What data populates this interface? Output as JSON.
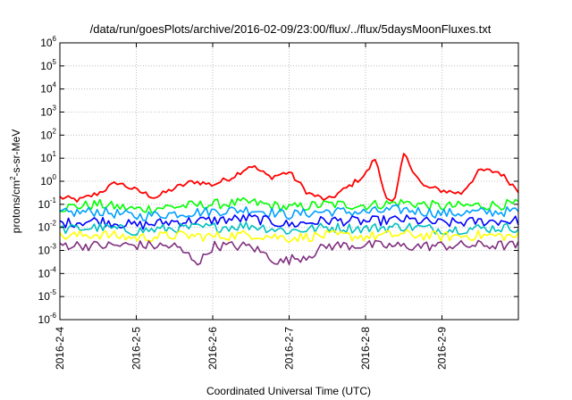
{
  "chart_data": {
    "type": "line",
    "title": "/data/run/goesPlots/archive/2016-02-09/23:00/flux/../flux/5daysMoonFluxes.txt",
    "xlabel": "Coordinated Universal Time (UTC)",
    "ylabel": "protons/cm²-s-sr-MeV",
    "ylabel_parts": {
      "base": "protons/cm",
      "sup": "2",
      "rest": "-s-sr-MeV"
    },
    "yscale": "log",
    "ylim": [
      1e-06,
      1000000.0
    ],
    "y_tick_exponents": [
      -6,
      -5,
      -4,
      -3,
      -2,
      -1,
      0,
      1,
      2,
      3,
      4,
      5,
      6
    ],
    "y_tick_base": "10",
    "x_range_days": [
      "2016-2-4",
      "2016-2-10"
    ],
    "x_ticks": [
      "2016-2-4",
      "2016-2-5",
      "2016-2-6",
      "2016-2-7",
      "2016-2-8",
      "2016-2-9"
    ],
    "grid": true,
    "series": [
      {
        "color": "#ff0000",
        "x": [
          "2016-2-4 00:00",
          "2016-2-4 06:00",
          "2016-2-4 12:00",
          "2016-2-4 18:00",
          "2016-2-5 00:00",
          "2016-2-5 06:00",
          "2016-2-5 12:00",
          "2016-2-5 18:00",
          "2016-2-6 00:00",
          "2016-2-6 06:00",
          "2016-2-6 12:00",
          "2016-2-6 18:00",
          "2016-2-7 00:00",
          "2016-2-7 06:00",
          "2016-2-7 12:00",
          "2016-2-7 18:00",
          "2016-2-8 00:00",
          "2016-2-8 03:00",
          "2016-2-8 06:00",
          "2016-2-8 09:00",
          "2016-2-8 12:00",
          "2016-2-8 18:00",
          "2016-2-9 00:00",
          "2016-2-9 06:00",
          "2016-2-9 12:00",
          "2016-2-9 18:00",
          "2016-2-10 00:00"
        ],
        "values": [
          0.2,
          0.15,
          0.3,
          0.9,
          0.4,
          0.2,
          0.5,
          1.0,
          0.7,
          1.5,
          5.0,
          1.5,
          2.5,
          0.3,
          0.15,
          0.5,
          2.0,
          10.0,
          0.3,
          0.1,
          15.0,
          0.6,
          0.4,
          0.3,
          3.0,
          2.5,
          0.4
        ]
      },
      {
        "color": "#00ff00",
        "x": [
          "2016-2-4 00:00",
          "2016-2-4 12:00",
          "2016-2-5 00:00",
          "2016-2-5 12:00",
          "2016-2-6 00:00",
          "2016-2-6 12:00",
          "2016-2-7 00:00",
          "2016-2-7 12:00",
          "2016-2-8 00:00",
          "2016-2-8 12:00",
          "2016-2-9 00:00",
          "2016-2-9 12:00",
          "2016-2-10 00:00"
        ],
        "values": [
          0.07,
          0.1,
          0.06,
          0.08,
          0.1,
          0.12,
          0.07,
          0.1,
          0.09,
          0.12,
          0.08,
          0.09,
          0.1
        ]
      },
      {
        "color": "#00a0ff",
        "x": [
          "2016-2-4 00:00",
          "2016-2-4 12:00",
          "2016-2-5 00:00",
          "2016-2-5 12:00",
          "2016-2-6 00:00",
          "2016-2-6 12:00",
          "2016-2-7 00:00",
          "2016-2-7 12:00",
          "2016-2-8 00:00",
          "2016-2-8 12:00",
          "2016-2-9 00:00",
          "2016-2-9 12:00",
          "2016-2-10 00:00"
        ],
        "values": [
          0.04,
          0.05,
          0.03,
          0.04,
          0.05,
          0.06,
          0.035,
          0.05,
          0.045,
          0.06,
          0.04,
          0.045,
          0.05
        ]
      },
      {
        "color": "#0000ff",
        "x": [
          "2016-2-4 00:00",
          "2016-2-4 12:00",
          "2016-2-5 00:00",
          "2016-2-5 12:00",
          "2016-2-6 00:00",
          "2016-2-6 12:00",
          "2016-2-7 00:00",
          "2016-2-7 12:00",
          "2016-2-8 00:00",
          "2016-2-8 12:00",
          "2016-2-9 00:00",
          "2016-2-9 12:00",
          "2016-2-10 00:00"
        ],
        "values": [
          0.015,
          0.02,
          0.012,
          0.018,
          0.02,
          0.025,
          0.013,
          0.02,
          0.018,
          0.022,
          0.015,
          0.018,
          0.02
        ]
      },
      {
        "color": "#00c0c0",
        "x": [
          "2016-2-4 00:00",
          "2016-2-4 12:00",
          "2016-2-5 00:00",
          "2016-2-5 12:00",
          "2016-2-6 00:00",
          "2016-2-6 12:00",
          "2016-2-7 00:00",
          "2016-2-7 12:00",
          "2016-2-8 00:00",
          "2016-2-8 12:00",
          "2016-2-9 00:00",
          "2016-2-9 12:00",
          "2016-2-10 00:00"
        ],
        "values": [
          0.008,
          0.01,
          0.007,
          0.009,
          0.01,
          0.012,
          0.007,
          0.01,
          0.009,
          0.011,
          0.008,
          0.009,
          0.01
        ]
      },
      {
        "color": "#ffff00",
        "x": [
          "2016-2-4 00:00",
          "2016-2-4 12:00",
          "2016-2-5 00:00",
          "2016-2-5 12:00",
          "2016-2-6 00:00",
          "2016-2-6 12:00",
          "2016-2-7 00:00",
          "2016-2-7 12:00",
          "2016-2-8 00:00",
          "2016-2-8 12:00",
          "2016-2-9 00:00",
          "2016-2-9 12:00",
          "2016-2-10 00:00"
        ],
        "values": [
          0.004,
          0.005,
          0.0035,
          0.0045,
          0.004,
          0.005,
          0.0035,
          0.0045,
          0.004,
          0.005,
          0.004,
          0.0045,
          0.004
        ]
      },
      {
        "color": "#80307f",
        "x": [
          "2016-2-4 00:00",
          "2016-2-4 12:00",
          "2016-2-5 00:00",
          "2016-2-5 12:00",
          "2016-2-5 20:00",
          "2016-2-6 00:00",
          "2016-2-6 12:00",
          "2016-2-6 21:00",
          "2016-2-7 00:00",
          "2016-2-7 06:00",
          "2016-2-7 12:00",
          "2016-2-8 00:00",
          "2016-2-8 12:00",
          "2016-2-9 00:00",
          "2016-2-9 12:00",
          "2016-2-10 00:00"
        ],
        "values": [
          0.0018,
          0.0016,
          0.0017,
          0.0015,
          0.0003,
          0.0016,
          0.0015,
          0.0003,
          0.0004,
          0.0006,
          0.0016,
          0.0017,
          0.0015,
          0.0016,
          0.0017,
          0.0016
        ]
      }
    ]
  }
}
